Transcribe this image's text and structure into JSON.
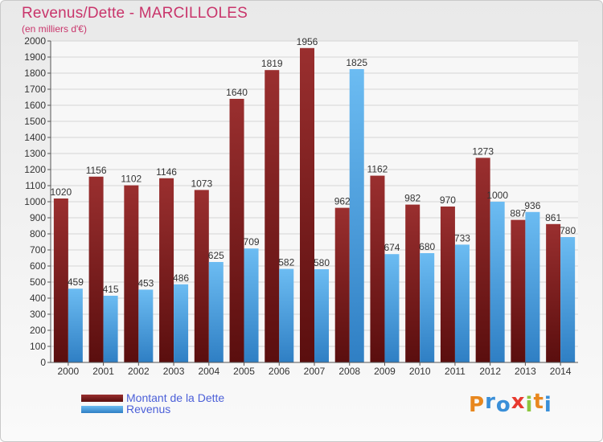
{
  "title": "Revenus/Dette - MARCILLOLES",
  "subtitle": "(en milliers d'€)",
  "legend": {
    "items": [
      {
        "label": "Montant de la Dette"
      },
      {
        "label": "Revenus"
      }
    ]
  },
  "logo": {
    "letters": [
      {
        "char": "P",
        "color": "#e8871e"
      },
      {
        "char": "r",
        "color": "#3a8fd8"
      },
      {
        "char": "o",
        "color": "#3a8fd8"
      },
      {
        "char": "x",
        "color": "#e83a2f"
      },
      {
        "char": "i",
        "color": "#8dc63f"
      },
      {
        "char": "t",
        "color": "#e8871e"
      },
      {
        "char": "i",
        "color": "#3a8fd8"
      }
    ]
  },
  "colors": {
    "debt": "#7b1c1c",
    "debt_light": "#9e3030",
    "revenue": "#4aa3e6",
    "revenue_light": "#6fbaf0",
    "title": "#c9356b",
    "legend_text": "#4b5fd8"
  },
  "chart_data": {
    "type": "bar",
    "categories": [
      "2000",
      "2001",
      "2002",
      "2003",
      "2004",
      "2005",
      "2006",
      "2007",
      "2008",
      "2009",
      "2010",
      "2011",
      "2012",
      "2013",
      "2014"
    ],
    "series": [
      {
        "name": "Montant de la Dette",
        "values": [
          1020,
          1156,
          1102,
          1146,
          1073,
          1640,
          1819,
          1956,
          962,
          1162,
          982,
          970,
          1273,
          887,
          861
        ]
      },
      {
        "name": "Revenus",
        "values": [
          459,
          415,
          453,
          486,
          625,
          709,
          582,
          580,
          1825,
          674,
          680,
          733,
          1000,
          936,
          780
        ]
      }
    ],
    "title": "Revenus/Dette - MARCILLOLES",
    "subtitle": "(en milliers d'€)",
    "ylim": [
      0,
      2000
    ],
    "ytick_step": 100,
    "grid": true,
    "legend_position": "bottom-left"
  }
}
